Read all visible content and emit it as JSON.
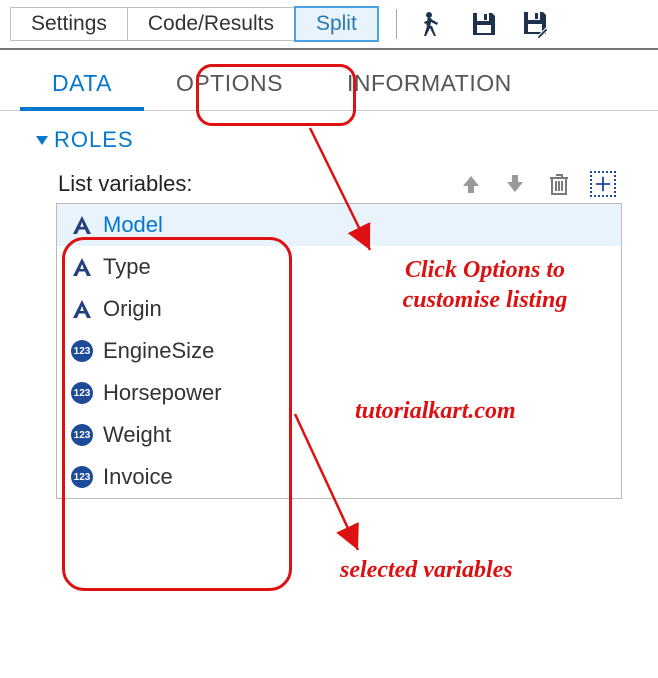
{
  "toolbar": {
    "settings": "Settings",
    "code_results": "Code/Results",
    "split": "Split"
  },
  "tabs": {
    "data": "DATA",
    "options": "OPTIONS",
    "information": "INFORMATION"
  },
  "roles": {
    "heading": "ROLES",
    "list_label": "List variables:",
    "variables": [
      {
        "name": "Model",
        "type": "char",
        "selected": true
      },
      {
        "name": "Type",
        "type": "char",
        "selected": false
      },
      {
        "name": "Origin",
        "type": "char",
        "selected": false
      },
      {
        "name": "EngineSize",
        "type": "num",
        "selected": false
      },
      {
        "name": "Horsepower",
        "type": "num",
        "selected": false
      },
      {
        "name": "Weight",
        "type": "num",
        "selected": false
      },
      {
        "name": "Invoice",
        "type": "num",
        "selected": false
      }
    ]
  },
  "annotations": {
    "options_note_line1": "Click Options to",
    "options_note_line2": "customise listing",
    "watermark": "tutorialkart.com",
    "selected_note": "selected variables"
  },
  "colors": {
    "accent": "#0378cd",
    "callout": "#d11a1a",
    "icon_dark": "#1e3250",
    "icon_gray": "#8a8a8a",
    "num_badge": "#1e4a9a"
  }
}
